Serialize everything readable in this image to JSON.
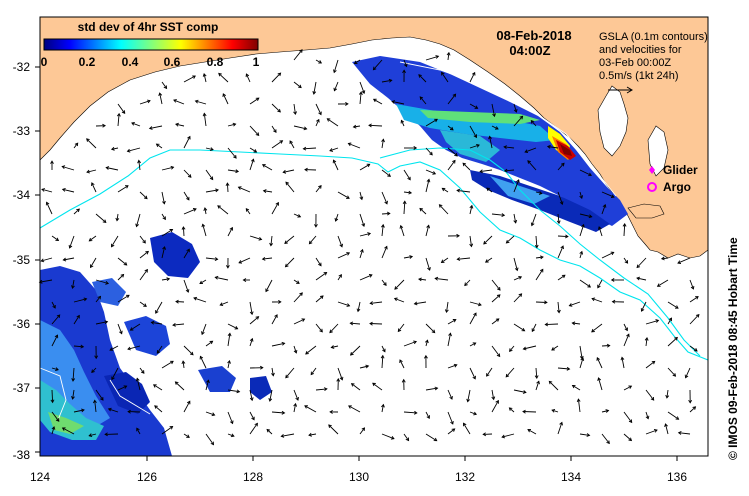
{
  "colorbar": {
    "title": "std dev of 4hr SST comp",
    "ticks": [
      "0",
      "0.2",
      "0.4",
      "0.6",
      "0.8",
      "1"
    ],
    "range": [
      0,
      1
    ],
    "colors": [
      "#00007f",
      "#0000ff",
      "#007fff",
      "#00ffff",
      "#7fff7f",
      "#ffff00",
      "#ff7f00",
      "#ff0000",
      "#7f0000"
    ]
  },
  "timestamp": {
    "date": "08-Feb-2018",
    "time": "04:00Z"
  },
  "gsla_note": {
    "line1": "GSLA (0.1m contours)",
    "line2": "and velocities for",
    "line3": "03-Feb 00:00Z",
    "line4": "0.5m/s (1kt 24h)"
  },
  "legend": {
    "glider": {
      "label": "Glider",
      "color": "#ff00ff",
      "symbol": "diamond"
    },
    "argo": {
      "label": "Argo",
      "color": "#ff00ff",
      "symbol": "circle"
    }
  },
  "credit": "© IMOS 09-Feb-2018 08:45 Hobart Time",
  "axes": {
    "lon_labels": [
      "124",
      "126",
      "128",
      "130",
      "132",
      "134",
      "136"
    ],
    "lat_labels": [
      "-32",
      "-33",
      "-34",
      "-35",
      "-36",
      "-37",
      "-38"
    ],
    "lon_range": [
      124,
      136.6
    ],
    "lat_range": [
      -38.1,
      -31.3
    ]
  },
  "colors": {
    "land": "#fdc896",
    "ocean": "#ffffff",
    "gsla_contour": "#00e5ee",
    "current_arrow": "#000000"
  }
}
